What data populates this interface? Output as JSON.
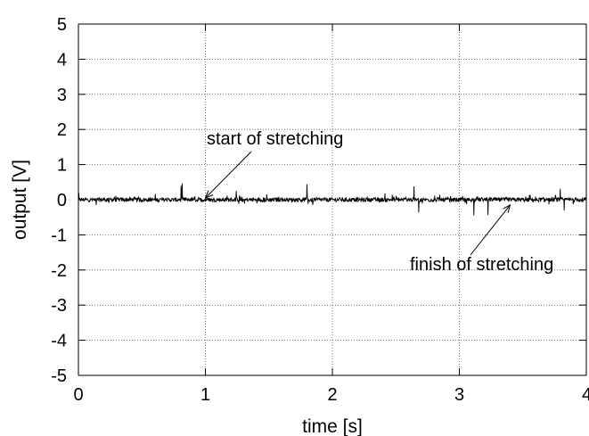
{
  "chart_data": {
    "type": "line",
    "title": "",
    "xlabel": "time [s]",
    "ylabel": "output [V]",
    "xlim": [
      0,
      4
    ],
    "ylim": [
      -5,
      5
    ],
    "xticks": [
      0,
      1,
      2,
      3,
      4
    ],
    "yticks": [
      -5,
      -4,
      -3,
      -2,
      -1,
      0,
      1,
      2,
      3,
      4,
      5
    ],
    "xtick_labels": [
      "0",
      "1",
      "2",
      "3",
      "4"
    ],
    "ytick_labels": [
      "-5",
      "-4",
      "-3",
      "-2",
      "-1",
      "0",
      "1",
      "2",
      "3",
      "4",
      "5"
    ],
    "grid": true,
    "series": [
      {
        "description": "noisy signal around 0 V",
        "color": "#000000",
        "x_start": 0,
        "x_end": 4,
        "mean": 0.0,
        "noise_amplitude": 0.25
      }
    ],
    "annotations": [
      {
        "text": "start of stretching",
        "points_to": [
          1.0,
          0.05
        ]
      },
      {
        "text": "finish of stretching",
        "points_to": [
          3.4,
          -0.15
        ]
      }
    ]
  }
}
